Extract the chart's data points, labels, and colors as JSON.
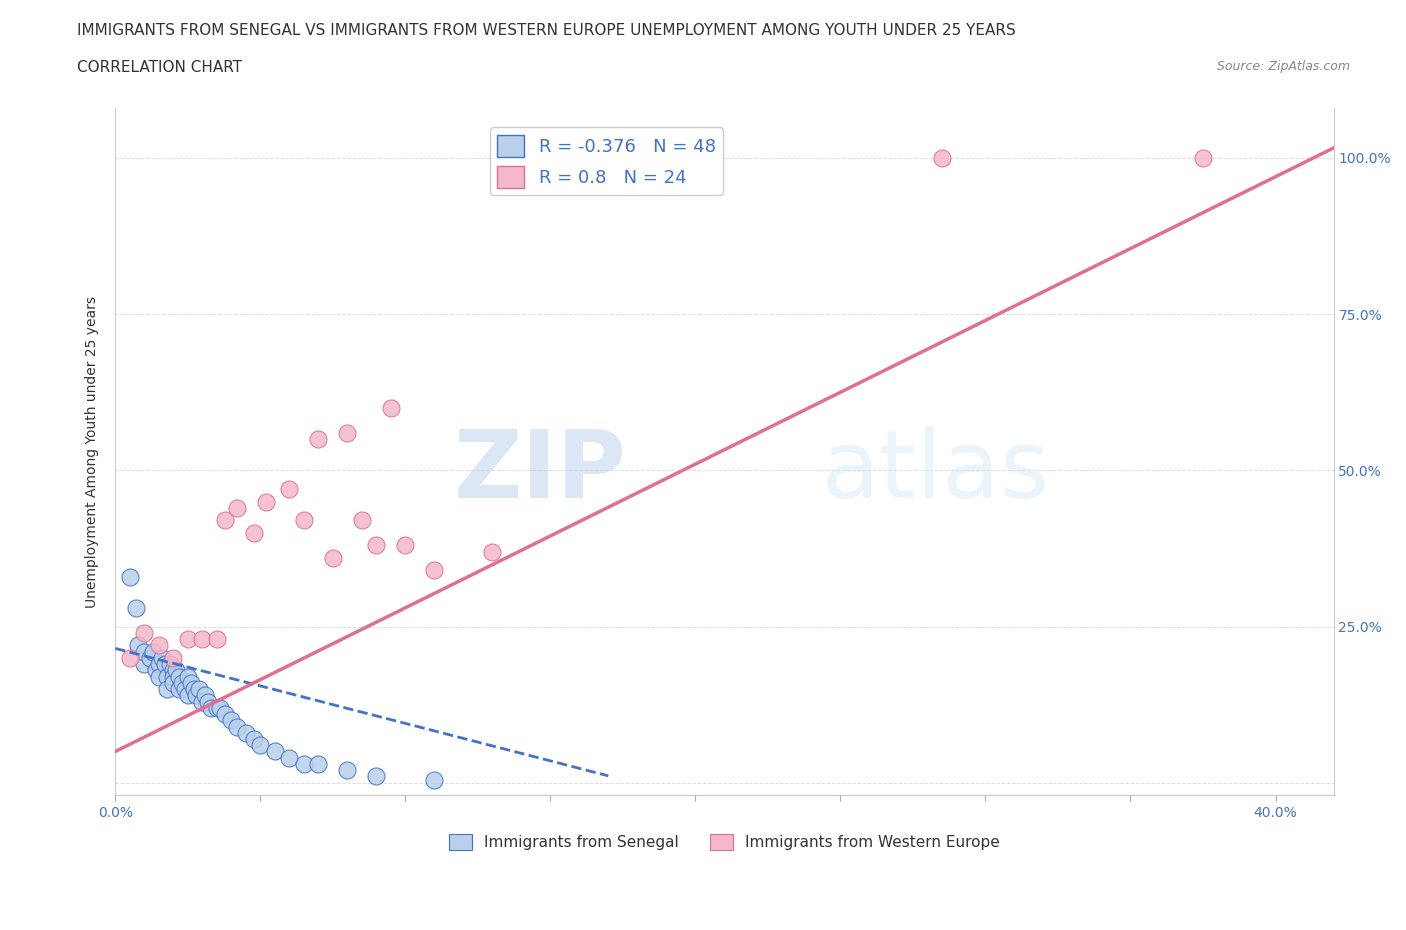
{
  "title": "IMMIGRANTS FROM SENEGAL VS IMMIGRANTS FROM WESTERN EUROPE UNEMPLOYMENT AMONG YOUTH UNDER 25 YEARS",
  "subtitle": "CORRELATION CHART",
  "source": "Source: ZipAtlas.com",
  "ylabel": "Unemployment Among Youth under 25 years",
  "xlim": [
    0.0,
    0.42
  ],
  "ylim": [
    -0.02,
    1.08
  ],
  "series1_name": "Immigrants from Senegal",
  "series1_color": "#b8d0ea",
  "series1_edge_color": "#4472c4",
  "series1_R": -0.376,
  "series1_N": 48,
  "series1_line_color": "#4472c4",
  "series2_name": "Immigrants from Western Europe",
  "series2_color": "#f4b8c8",
  "series2_edge_color": "#e07090",
  "series2_R": 0.8,
  "series2_N": 24,
  "series2_line_color": "#e07090",
  "legend_R_color": "#4472c4",
  "watermark_text": "ZIPatlas",
  "background_color": "#ffffff",
  "grid_color": "#dddddd",
  "title_fontsize": 11,
  "axis_label_fontsize": 10,
  "tick_label_fontsize": 10,
  "senegal_x": [
    0.005,
    0.007,
    0.008,
    0.01,
    0.01,
    0.012,
    0.013,
    0.014,
    0.015,
    0.015,
    0.016,
    0.017,
    0.018,
    0.018,
    0.019,
    0.02,
    0.02,
    0.02,
    0.021,
    0.022,
    0.022,
    0.023,
    0.024,
    0.025,
    0.025,
    0.026,
    0.027,
    0.028,
    0.029,
    0.03,
    0.031,
    0.032,
    0.033,
    0.035,
    0.036,
    0.038,
    0.04,
    0.042,
    0.045,
    0.048,
    0.05,
    0.055,
    0.06,
    0.065,
    0.07,
    0.08,
    0.09,
    0.11
  ],
  "senegal_y": [
    0.33,
    0.28,
    0.22,
    0.19,
    0.21,
    0.2,
    0.21,
    0.18,
    0.19,
    0.17,
    0.2,
    0.19,
    0.17,
    0.15,
    0.19,
    0.18,
    0.17,
    0.16,
    0.18,
    0.17,
    0.15,
    0.16,
    0.15,
    0.17,
    0.14,
    0.16,
    0.15,
    0.14,
    0.15,
    0.13,
    0.14,
    0.13,
    0.12,
    0.12,
    0.12,
    0.11,
    0.1,
    0.09,
    0.08,
    0.07,
    0.06,
    0.05,
    0.04,
    0.03,
    0.03,
    0.02,
    0.01,
    0.005
  ],
  "western_x": [
    0.005,
    0.01,
    0.015,
    0.02,
    0.025,
    0.03,
    0.035,
    0.038,
    0.042,
    0.048,
    0.052,
    0.06,
    0.065,
    0.07,
    0.075,
    0.08,
    0.085,
    0.09,
    0.095,
    0.1,
    0.11,
    0.13,
    0.285,
    0.375
  ],
  "western_y": [
    0.2,
    0.24,
    0.22,
    0.2,
    0.23,
    0.23,
    0.23,
    0.42,
    0.44,
    0.4,
    0.45,
    0.47,
    0.42,
    0.55,
    0.36,
    0.56,
    0.42,
    0.38,
    0.6,
    0.38,
    0.34,
    0.37,
    1.0,
    1.0
  ],
  "line1_x": [
    0.0,
    0.17
  ],
  "line1_y_start": 0.215,
  "line1_slope": -1.2,
  "line2_x": [
    0.0,
    0.42
  ],
  "line2_y_start": 0.05,
  "line2_slope": 2.3
}
